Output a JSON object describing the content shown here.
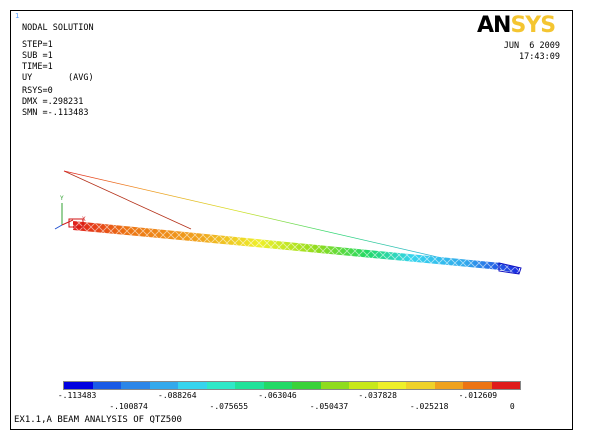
{
  "window_number": "1",
  "logo": {
    "part1": "AN",
    "part2": "SYS"
  },
  "info": {
    "title": "NODAL SOLUTION",
    "step": "STEP=1",
    "sub": "SUB =1",
    "time": "TIME=1",
    "item": "UY       (AVG)",
    "rsys": "RSYS=0",
    "dmx": "DMX =.298231",
    "smn": "SMN =-.113483"
  },
  "date": "JUN  6 2009",
  "clock": "17:43:09",
  "legend": {
    "colors": [
      "#0000e0",
      "#1a5ae6",
      "#2c86e8",
      "#33a9ec",
      "#36d4ee",
      "#2fe8c8",
      "#21e29a",
      "#22d966",
      "#3ad23a",
      "#8fdc1e",
      "#c8e81a",
      "#eef02a",
      "#f0d22a",
      "#f0a21e",
      "#ec7414",
      "#e01c1c"
    ],
    "labels_top": [
      "-.113483",
      "-.088264",
      "-.063046",
      "-.037828",
      "-.012609"
    ],
    "labels_bottom": [
      "-.100874",
      "-.075655",
      "-.050437",
      "-.025218",
      "0"
    ]
  },
  "model_title": "EX1.1,A BEAM ANALYSIS OF QTZ500",
  "triad": {
    "y": "Y",
    "x": "X",
    "z": "Z"
  }
}
